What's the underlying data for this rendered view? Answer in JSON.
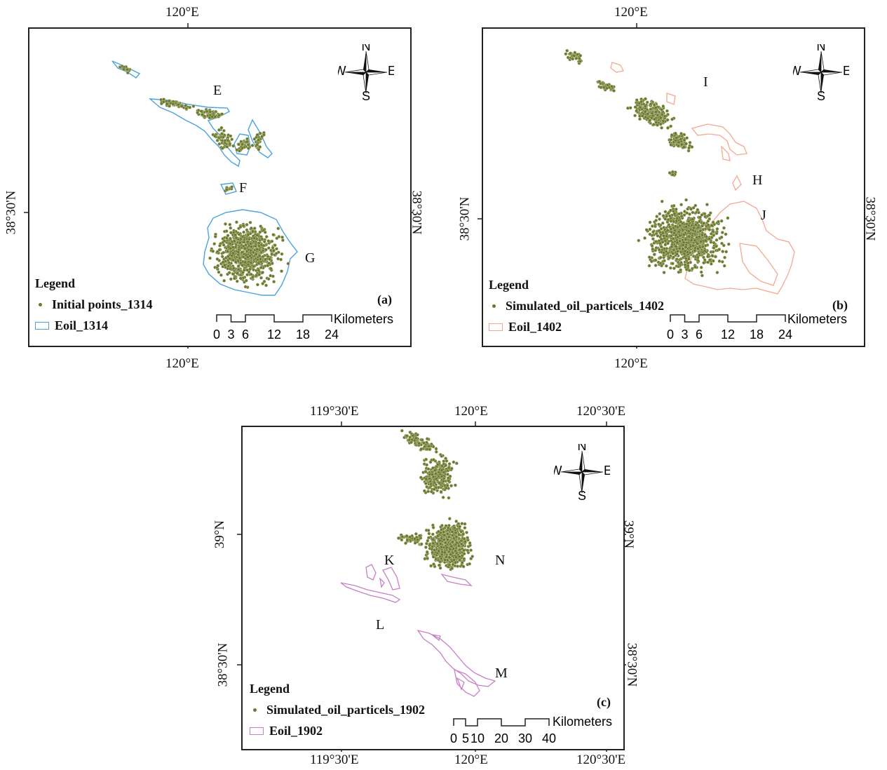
{
  "colors": {
    "particle": "#6b7a32",
    "particle_edge": "#cfd0a8",
    "eoil_a": "#4aa3df",
    "eoil_b": "#f4a892",
    "eoil_c": "#c77fc9"
  },
  "panels": [
    {
      "id": "a",
      "letter": "(a)",
      "top_ticks": [
        "120°E"
      ],
      "bottom_ticks": [
        "120°E"
      ],
      "left_ticks": [
        "38°30'N"
      ],
      "right_ticks": [
        "38°30'N"
      ],
      "labels": [
        "E",
        "F",
        "G"
      ],
      "legend_title": "Legend",
      "legend_items": [
        "Initial points_1314",
        "Eoil_1314"
      ],
      "scale_ticks": [
        "0",
        "3",
        "6",
        "12",
        "18",
        "24"
      ],
      "scale_unit": "Kilometers",
      "compass": {
        "n": "N",
        "s": "S",
        "e": "E",
        "w": "W"
      }
    },
    {
      "id": "b",
      "letter": "(b)",
      "top_ticks": [
        "120°E"
      ],
      "bottom_ticks": [
        "120°E"
      ],
      "left_ticks": [
        "38°30'N"
      ],
      "right_ticks": [
        "38°30'N"
      ],
      "labels": [
        "I",
        "H",
        "J"
      ],
      "legend_title": "Legend",
      "legend_items": [
        "Simulated_oil_particels_1402",
        "Eoil_1402"
      ],
      "scale_ticks": [
        "0",
        "3",
        "6",
        "12",
        "18",
        "24"
      ],
      "scale_unit": "Kilometers",
      "compass": {
        "n": "N",
        "s": "S",
        "e": "E",
        "w": "W"
      }
    },
    {
      "id": "c",
      "letter": "(c)",
      "top_ticks": [
        "119°30'E",
        "120°E",
        "120°30'E"
      ],
      "bottom_ticks": [
        "119°30'E",
        "120°E",
        "120°30'E"
      ],
      "left_ticks": [
        "39°N",
        "38°30'N"
      ],
      "right_ticks": [
        "39°N",
        "38°30'N"
      ],
      "labels": [
        "K",
        "N",
        "L",
        "M"
      ],
      "legend_title": "Legend",
      "legend_items": [
        "Simulated_oil_particels_1902",
        "Eoil_1902"
      ],
      "scale_ticks": [
        "0",
        "5",
        "10",
        "20",
        "30",
        "40"
      ],
      "scale_unit": "Kilometers",
      "compass": {
        "n": "N",
        "s": "S",
        "e": "E",
        "w": "W"
      }
    }
  ]
}
